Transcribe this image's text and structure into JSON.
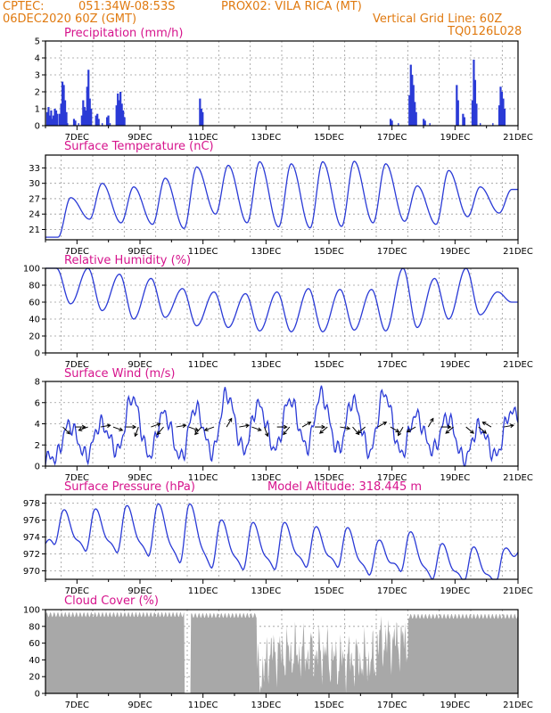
{
  "header": {
    "source": "CPTEC:",
    "coords": "051:34W-08:53S",
    "location": "PROX02: VILA RICA (MT)",
    "date": "06DEC2020 60Z (GMT)",
    "grid_note": "Vertical Grid Line: 60Z",
    "model": "TQ0126L028"
  },
  "colors": {
    "header": "#e07a10",
    "title": "#d6138c",
    "line": "#2a3ad6",
    "bar": "#2a3ad6",
    "cloud": "#a8a8a8"
  },
  "chart_data": [
    {
      "type": "bar",
      "title": "Precipitation (mm/h)",
      "xticks": [
        "7DEC",
        "9DEC",
        "11DEC",
        "13DEC",
        "15DEC",
        "17DEC",
        "19DEC",
        "21DEC"
      ],
      "xrange_days": [
        6,
        21
      ],
      "ylim": [
        0,
        5
      ],
      "yticks": [
        0,
        1,
        2,
        3,
        4,
        5
      ],
      "events": [
        {
          "day": 6.05,
          "values": [
            0.8,
            1.1,
            0.6,
            0.9,
            0.4
          ]
        },
        {
          "day": 6.25,
          "values": [
            0.6,
            1.0,
            0.9,
            0.7
          ]
        },
        {
          "day": 6.45,
          "values": [
            0.7,
            1.3,
            2.6,
            2.4,
            1.5,
            0.8
          ]
        },
        {
          "day": 6.9,
          "values": [
            0.4,
            0.3
          ]
        },
        {
          "day": 7.15,
          "values": [
            0.6,
            1.5,
            1.1,
            0.9,
            2.3,
            3.3,
            1.6,
            1.0
          ]
        },
        {
          "day": 7.6,
          "values": [
            0.6,
            0.7,
            0.4
          ]
        },
        {
          "day": 7.95,
          "values": [
            0.5,
            0.6
          ]
        },
        {
          "day": 8.25,
          "values": [
            1.2,
            1.9,
            1.5,
            2.0,
            1.3,
            0.9,
            0.5
          ]
        },
        {
          "day": 10.9,
          "values": [
            1.6,
            1.0,
            0.8
          ]
        },
        {
          "day": 16.95,
          "values": [
            0.4,
            0.3
          ]
        },
        {
          "day": 17.55,
          "values": [
            1.8,
            3.6,
            3.0,
            2.4,
            1.4,
            0.8
          ]
        },
        {
          "day": 18.0,
          "values": [
            0.4,
            0.3
          ]
        },
        {
          "day": 19.05,
          "values": [
            2.4,
            1.5
          ]
        },
        {
          "day": 19.25,
          "values": [
            0.7,
            0.5
          ]
        },
        {
          "day": 19.55,
          "values": [
            1.5,
            3.9,
            2.7,
            1.3
          ]
        },
        {
          "day": 20.4,
          "values": [
            1.2,
            2.3,
            2.0,
            1.6,
            1.0
          ]
        }
      ]
    },
    {
      "type": "line",
      "title": "Surface Temperature (nC)",
      "xticks": [
        "7DEC",
        "9DEC",
        "11DEC",
        "13DEC",
        "15DEC",
        "17DEC",
        "19DEC",
        "21DEC"
      ],
      "ylim": [
        19,
        35.5
      ],
      "yticks": [
        21,
        24,
        27,
        30,
        33
      ],
      "daily": [
        {
          "min": 19.5,
          "max": 27.2
        },
        {
          "min": 23.0,
          "max": 30.0
        },
        {
          "min": 22.3,
          "max": 29.3
        },
        {
          "min": 22.0,
          "max": 31.0
        },
        {
          "min": 21.2,
          "max": 33.2
        },
        {
          "min": 24.0,
          "max": 33.5
        },
        {
          "min": 22.3,
          "max": 34.2
        },
        {
          "min": 21.5,
          "max": 33.8
        },
        {
          "min": 21.3,
          "max": 34.2
        },
        {
          "min": 21.6,
          "max": 34.3
        },
        {
          "min": 22.3,
          "max": 33.8
        },
        {
          "min": 22.6,
          "max": 29.5
        },
        {
          "min": 22.0,
          "max": 32.5
        },
        {
          "min": 23.5,
          "max": 29.3
        },
        {
          "min": 24.2,
          "max": 28.8
        }
      ]
    },
    {
      "type": "line",
      "title": "Relative Humidity (%)",
      "xticks": [
        "7DEC",
        "9DEC",
        "11DEC",
        "13DEC",
        "15DEC",
        "17DEC",
        "19DEC",
        "21DEC"
      ],
      "ylim": [
        0,
        100
      ],
      "yticks": [
        0,
        20,
        40,
        60,
        80,
        100
      ],
      "daily": [
        {
          "min": 58,
          "max": 100
        },
        {
          "min": 50,
          "max": 100
        },
        {
          "min": 40,
          "max": 93
        },
        {
          "min": 42,
          "max": 88
        },
        {
          "min": 32,
          "max": 76
        },
        {
          "min": 30,
          "max": 72
        },
        {
          "min": 26,
          "max": 70
        },
        {
          "min": 25,
          "max": 72
        },
        {
          "min": 25,
          "max": 76
        },
        {
          "min": 27,
          "max": 75
        },
        {
          "min": 26,
          "max": 75
        },
        {
          "min": 30,
          "max": 100
        },
        {
          "min": 40,
          "max": 88
        },
        {
          "min": 45,
          "max": 100
        },
        {
          "min": 60,
          "max": 72
        }
      ]
    },
    {
      "type": "line",
      "title": "Surface Wind (m/s)",
      "xticks": [
        "7DEC",
        "9DEC",
        "11DEC",
        "13DEC",
        "15DEC",
        "17DEC",
        "19DEC",
        "21DEC"
      ],
      "ylim": [
        0,
        8
      ],
      "yticks": [
        0,
        2,
        4,
        6,
        8
      ],
      "arrow_level": 3.7,
      "daily": [
        {
          "min": 0.8,
          "max": 3.9
        },
        {
          "min": 1.0,
          "max": 4.0
        },
        {
          "min": 1.5,
          "max": 6.5
        },
        {
          "min": 1.0,
          "max": 5.0
        },
        {
          "min": 0.8,
          "max": 5.5
        },
        {
          "min": 1.3,
          "max": 6.8
        },
        {
          "min": 1.5,
          "max": 5.8
        },
        {
          "min": 1.6,
          "max": 6.3
        },
        {
          "min": 1.8,
          "max": 6.8
        },
        {
          "min": 1.5,
          "max": 6.2
        },
        {
          "min": 1.3,
          "max": 6.9
        },
        {
          "min": 1.2,
          "max": 4.8
        },
        {
          "min": 1.5,
          "max": 4.6
        },
        {
          "min": 0.6,
          "max": 3.7
        },
        {
          "min": 1.0,
          "max": 5.0
        }
      ],
      "arrows_deg": [
        135,
        90,
        250,
        80,
        110,
        90,
        200,
        70,
        220,
        80,
        110,
        220,
        250,
        30,
        80,
        110,
        160,
        90,
        220,
        60,
        90,
        230,
        100,
        140,
        230,
        60,
        120,
        210,
        240,
        30,
        90,
        230,
        130,
        130,
        300,
        80
      ]
    },
    {
      "type": "line",
      "title": "Surface Pressure (hPa)",
      "annotation": "Model Altitude: 318.445 m",
      "xticks": [
        "7DEC",
        "9DEC",
        "11DEC",
        "13DEC",
        "15DEC",
        "17DEC",
        "19DEC",
        "21DEC"
      ],
      "ylim": [
        969,
        979
      ],
      "yticks": [
        970,
        972,
        974,
        976,
        978
      ],
      "daily": [
        {
          "min": 973.2,
          "max": 976.8
        },
        {
          "min": 972.4,
          "max": 976.9
        },
        {
          "min": 972.2,
          "max": 977.3
        },
        {
          "min": 971.8,
          "max": 977.5
        },
        {
          "min": 971.0,
          "max": 977.5
        },
        {
          "min": 970.4,
          "max": 975.6
        },
        {
          "min": 970.2,
          "max": 975.3
        },
        {
          "min": 970.2,
          "max": 975.3
        },
        {
          "min": 970.5,
          "max": 974.8
        },
        {
          "min": 970.5,
          "max": 974.7
        },
        {
          "min": 969.6,
          "max": 973.2
        },
        {
          "min": 970.0,
          "max": 974.2
        },
        {
          "min": 969.1,
          "max": 972.8
        },
        {
          "min": 968.8,
          "max": 972.4
        },
        {
          "min": 968.5,
          "max": 972.2
        }
      ]
    },
    {
      "type": "area",
      "title": "Cloud Cover (%)",
      "xticks": [
        "7DEC",
        "9DEC",
        "11DEC",
        "13DEC",
        "15DEC",
        "17DEC",
        "19DEC",
        "21DEC"
      ],
      "ylim": [
        0,
        100
      ],
      "yticks": [
        0,
        20,
        40,
        60,
        80,
        100
      ],
      "segments": [
        {
          "from": 6.0,
          "to": 10.4,
          "level": 94
        },
        {
          "from": 10.4,
          "to": 10.6,
          "level": 0
        },
        {
          "from": 10.6,
          "to": 12.7,
          "level": 93
        },
        {
          "from": 12.7,
          "to": 13.0,
          "level": 25
        },
        {
          "from": 13.0,
          "to": 15.0,
          "level": 48
        },
        {
          "from": 15.0,
          "to": 16.5,
          "level": 40
        },
        {
          "from": 16.5,
          "to": 17.5,
          "level": 62
        },
        {
          "from": 17.5,
          "to": 21.0,
          "level": 92
        }
      ]
    }
  ]
}
